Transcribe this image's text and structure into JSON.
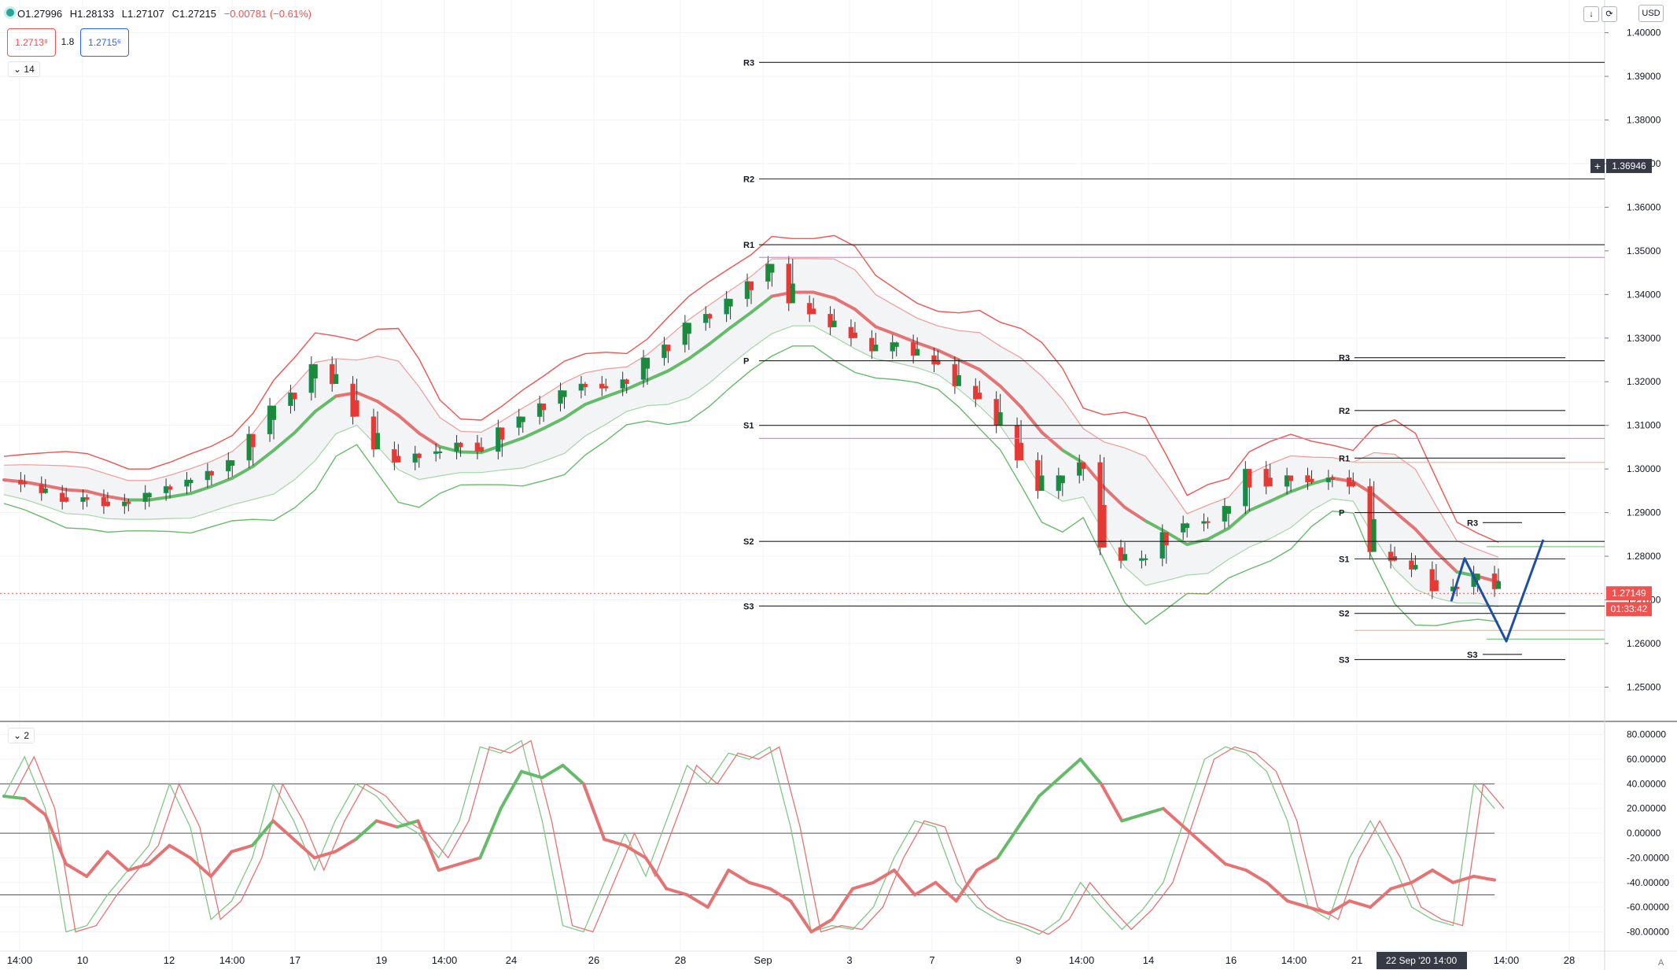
{
  "header": {
    "open": "O1.27996",
    "high": "H1.28133",
    "low": "L1.27107",
    "close": "C1.27215",
    "change": "−0.00781 (−0.61%)",
    "bid": "1.2713⁸",
    "spread": "1.8",
    "ask": "1.2715⁶",
    "main_collapse": "14",
    "osc_collapse": "2",
    "currency": "USD",
    "price_label": "1.27149",
    "countdown": "01:33:42",
    "crosshair_price": "1.36946",
    "crosshair_time": "22 Sep '20   14:00",
    "corner_label": "A"
  },
  "chart_data": [
    {
      "type": "candlestick",
      "ylim": [
        1.2425,
        1.4075
      ],
      "yticks": [
        "1.25000",
        "1.26000",
        "1.27000",
        "1.28000",
        "1.29000",
        "1.30000",
        "1.31000",
        "1.32000",
        "1.33000",
        "1.34000",
        "1.35000",
        "1.36000",
        "1.37000",
        "1.38000",
        "1.39000",
        "1.40000"
      ],
      "x_ticks": [
        "14:00",
        "10",
        "12",
        "14:00",
        "17",
        "19",
        "14:00",
        "24",
        "26",
        "28",
        "Sep",
        "3",
        "7",
        "9",
        "14:00",
        "14",
        "16",
        "14:00",
        "21",
        "14:00",
        "28"
      ],
      "close_path": [
        1.2975,
        1.2965,
        1.2945,
        1.2925,
        1.2935,
        1.2915,
        1.2925,
        1.2945,
        1.296,
        1.2975,
        1.2995,
        1.302,
        1.308,
        1.3145,
        1.3175,
        1.324,
        1.3195,
        1.312,
        1.3045,
        1.3015,
        1.3035,
        1.304,
        1.306,
        1.304,
        1.3095,
        1.312,
        1.315,
        1.318,
        1.3195,
        1.3185,
        1.3205,
        1.3255,
        1.3285,
        1.3335,
        1.3355,
        1.339,
        1.343,
        1.347,
        1.338,
        1.3355,
        1.3325,
        1.33,
        1.327,
        1.329,
        1.326,
        1.324,
        1.319,
        1.316,
        1.31,
        1.302,
        1.295,
        1.2985,
        1.3015,
        1.282,
        1.279,
        1.2795,
        1.2855,
        1.2875,
        1.288,
        1.2915,
        1.3,
        1.296,
        1.2985,
        1.297,
        1.298,
        1.296,
        1.281,
        1.279,
        1.277,
        1.272,
        1.273,
        1.276,
        1.2725
      ],
      "bollinger": {
        "color_upper": "#ef5350",
        "color_mid": "#4caf50"
      },
      "pivots_main": [
        {
          "label": "R3",
          "value": 1.3932
        },
        {
          "label": "R2",
          "value": 1.3665
        },
        {
          "label": "R1",
          "value": 1.3514
        },
        {
          "label": "P",
          "value": 1.3248
        },
        {
          "label": "S1",
          "value": 1.31
        },
        {
          "label": "S2",
          "value": 1.2834
        },
        {
          "label": "S3",
          "value": 1.2686
        }
      ],
      "pivots_mid": [
        {
          "label": "R3",
          "value": 1.3255
        },
        {
          "label": "R2",
          "value": 1.3134
        },
        {
          "label": "R1",
          "value": 1.3025
        },
        {
          "label": "P",
          "value": 1.29
        },
        {
          "label": "S1",
          "value": 1.2794
        },
        {
          "label": "S2",
          "value": 1.2669
        },
        {
          "label": "S3",
          "value": 1.2563
        }
      ],
      "pivots_small": [
        {
          "label": "R3",
          "value": 1.2877
        },
        {
          "label": "S3",
          "value": 1.2575
        }
      ],
      "last_price": 1.27149,
      "scenario": [
        {
          "t": 0,
          "v": 1.2697
        },
        {
          "t": 1,
          "v": 1.2795
        },
        {
          "t": 2,
          "v": 1.2605
        },
        {
          "t": 3,
          "v": 1.2838
        }
      ]
    },
    {
      "type": "line",
      "name": "stochastic",
      "ylim": [
        -95,
        90
      ],
      "yticks": [
        "80.00000",
        "60.00000",
        "40.00000",
        "20.00000",
        "0.00000",
        "-20.00000",
        "-40.00000",
        "-60.00000",
        "-80.00000"
      ],
      "levels": [
        40,
        0,
        -50
      ],
      "k": [
        30,
        62,
        20,
        -80,
        -75,
        -50,
        -30,
        -10,
        40,
        5,
        -70,
        -55,
        -20,
        40,
        10,
        -30,
        10,
        40,
        30,
        10,
        0,
        -20,
        10,
        70,
        65,
        75,
        10,
        -75,
        -80,
        -40,
        0,
        -35,
        10,
        55,
        40,
        65,
        60,
        70,
        5,
        -80,
        -75,
        -78,
        -60,
        -20,
        10,
        5,
        -40,
        -60,
        -70,
        -75,
        -82,
        -70,
        -40,
        -60,
        -78,
        -62,
        -40,
        10,
        60,
        70,
        65,
        50,
        10,
        -60,
        -70,
        -20,
        10,
        -20,
        -60,
        -70,
        -75,
        40,
        20
      ],
      "rsi": [
        30,
        28,
        15,
        -25,
        -35,
        -15,
        -30,
        -25,
        -10,
        -20,
        -35,
        -15,
        -10,
        10,
        -5,
        -20,
        -15,
        -5,
        10,
        5,
        10,
        -30,
        -25,
        -20,
        20,
        50,
        45,
        55,
        40,
        -5,
        -10,
        -20,
        -45,
        -50,
        -60,
        -30,
        -40,
        -45,
        -55,
        -80,
        -70,
        -45,
        -40,
        -30,
        -50,
        -40,
        -55,
        -30,
        -20,
        5,
        30,
        45,
        60,
        40,
        10,
        15,
        20,
        5,
        -10,
        -25,
        -30,
        -40,
        -55,
        -60,
        -65,
        -55,
        -60,
        -45,
        -40,
        -30,
        -40,
        -35,
        -38
      ],
      "colors": {
        "k": "#4caf50",
        "d": "#ef5350"
      }
    }
  ]
}
